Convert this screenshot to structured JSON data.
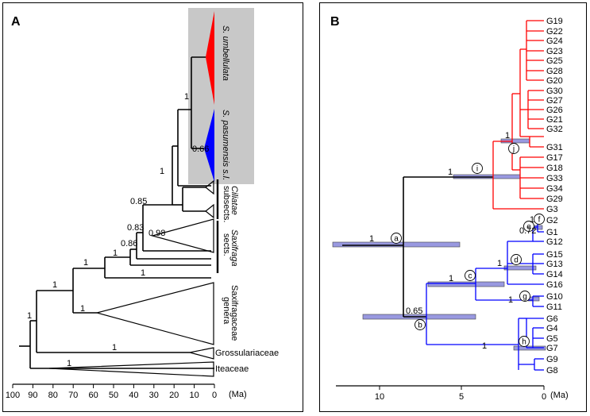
{
  "panel_a": {
    "label": "A",
    "axis_ticks": [
      "100",
      "90",
      "80",
      "70",
      "60",
      "50",
      "40",
      "30",
      "20",
      "10",
      "0"
    ],
    "axis_unit": "(Ma)",
    "supports": [
      "1",
      "1",
      "1",
      "0.85",
      "0.83",
      "0.86",
      "0.98",
      "1",
      "1",
      "1",
      "1",
      "1",
      "1",
      "1",
      "0.66"
    ],
    "clade_umbellulata": "S. umbellulata",
    "clade_pasumensis": "S. pasumensis s.l.",
    "clade_ciliatae_1": "Ciliatae",
    "clade_ciliatae_2": "subsects.",
    "clade_saxifraga_1": "Saxifraga",
    "clade_saxifraga_2": "sects.",
    "clade_saxifragaceae_1": "Saxifragaceae",
    "clade_saxifragaceae_2": "genera",
    "clade_grossulariaceae": "Grossulariaceae",
    "clade_iteaceae": "Iteaceae",
    "colors": {
      "umbellulata": "#ff0000",
      "pasumensis": "#0000ff",
      "highlight": "#c8c8c8"
    }
  },
  "panel_b": {
    "label": "B",
    "axis_ticks": [
      "10",
      "5",
      "0"
    ],
    "axis_unit": "(Ma)",
    "tips_red": [
      "G19",
      "G22",
      "G24",
      "G23",
      "G25",
      "G28",
      "G20",
      "G30",
      "G27",
      "G26",
      "G21",
      "G32",
      "G31",
      "G17",
      "G18",
      "G33",
      "G34",
      "G29",
      "G3"
    ],
    "tips_blue": [
      "G2",
      "G1",
      "G12",
      "G15",
      "G13",
      "G14",
      "G16",
      "G10",
      "G11",
      "G6",
      "G4",
      "G5",
      "G7",
      "G9",
      "G8"
    ],
    "node_letters": [
      "a",
      "b",
      "c",
      "d",
      "e",
      "f",
      "g",
      "h",
      "i",
      "j"
    ],
    "supports": [
      "1",
      "0.65",
      "1",
      "1",
      "0.72",
      "1",
      "1",
      "1",
      "1",
      "1"
    ],
    "colors": {
      "red_clade": "#ff0000",
      "blue_clade": "#0000ff",
      "bar": "#8080d8"
    }
  }
}
